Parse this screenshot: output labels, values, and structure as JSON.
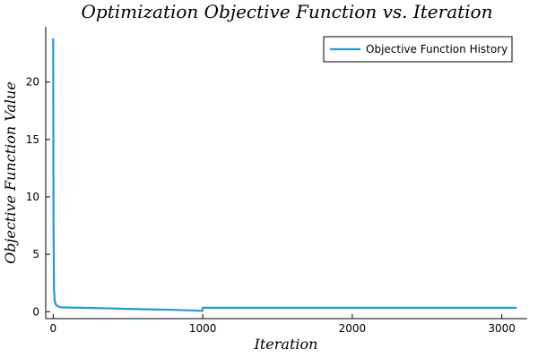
{
  "chart_data": {
    "type": "line",
    "title": "Optimization Objective Function vs. Iteration",
    "xlabel": "Iteration",
    "ylabel": "Objective Function Value",
    "xlim": [
      -50,
      3170
    ],
    "ylim": [
      -0.6,
      24.8
    ],
    "xticks": [
      0,
      1000,
      2000,
      3000
    ],
    "yticks": [
      0,
      5,
      10,
      15,
      20
    ],
    "grid": false,
    "legend_position": "top-right",
    "series": [
      {
        "name": "Objective Function History",
        "color": "#1f9bd7",
        "x": [
          0,
          2,
          5,
          10,
          20,
          35,
          50,
          100,
          200,
          400,
          600,
          800,
          998,
          999,
          1000,
          1500,
          2000,
          2500,
          3000,
          3100
        ],
        "y": [
          23.8,
          8.0,
          2.0,
          0.9,
          0.55,
          0.45,
          0.38,
          0.37,
          0.34,
          0.28,
          0.22,
          0.16,
          0.08,
          0.33,
          0.34,
          0.34,
          0.34,
          0.34,
          0.34,
          0.34
        ]
      }
    ]
  }
}
